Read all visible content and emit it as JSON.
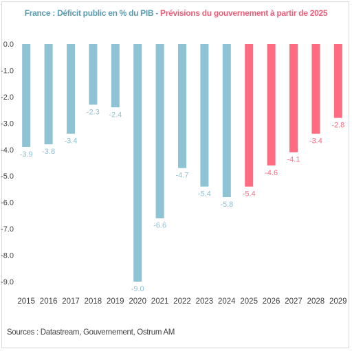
{
  "title_part1": "France : Déficit public en % du PIB",
  "title_sep": " - ",
  "title_part2": "Prévisions du gouvernement à partir de 2025",
  "source": "Sources : Datastream, Gouvernement, Ostrum AM",
  "colors": {
    "historical": "#8dc3d3",
    "forecast": "#ff6b81",
    "axis_text": "#404040",
    "label_hist": "#8dc3d3",
    "label_fc": "#ff6b81"
  },
  "chart_data": {
    "type": "bar",
    "categories": [
      "2015",
      "2016",
      "2017",
      "2018",
      "2019",
      "2020",
      "2021",
      "2022",
      "2023",
      "2024",
      "2025",
      "2026",
      "2027",
      "2028",
      "2029"
    ],
    "values": [
      -3.9,
      -3.8,
      -3.4,
      -2.3,
      -2.4,
      -9.0,
      -6.6,
      -4.7,
      -5.4,
      -5.8,
      -5.4,
      -4.6,
      -4.1,
      -3.4,
      -2.8
    ],
    "data_labels": [
      "-3.9",
      "-3.8",
      "-3.4",
      "-2.3",
      "-2.4",
      "-9.0",
      "-6.6",
      "-4.7",
      "-5.4",
      "-5.8",
      "-5.4",
      "-4.6",
      "-4.1",
      "-3.4",
      "-2.8"
    ],
    "forecast_from": "2025",
    "ylim": [
      -9.0,
      0.0
    ],
    "yticks": [
      "0.0",
      "-1.0",
      "-2.0",
      "-3.0",
      "-4.0",
      "-5.0",
      "-6.0",
      "-7.0",
      "-8.0",
      "-9.0"
    ],
    "xlabel": "",
    "ylabel": "",
    "grid": false,
    "legend": "none"
  }
}
